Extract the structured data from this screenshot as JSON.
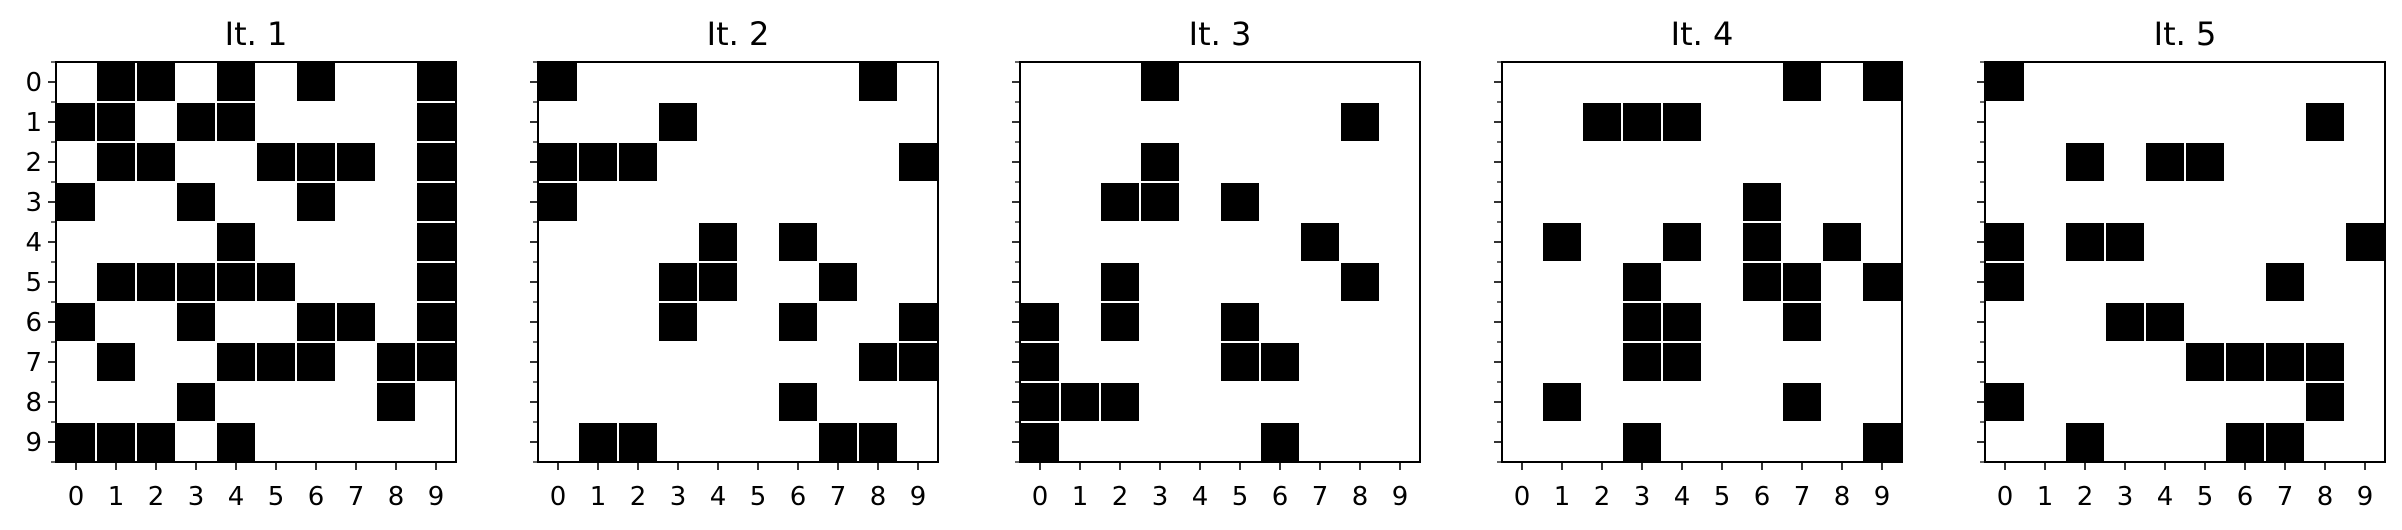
{
  "chart_data": [
    {
      "type": "heatmap",
      "title": "It. 1",
      "x_ticks": [
        "0",
        "1",
        "2",
        "3",
        "4",
        "5",
        "6",
        "7",
        "8",
        "9"
      ],
      "y_ticks": [
        "0",
        "1",
        "2",
        "3",
        "4",
        "5",
        "6",
        "7",
        "8",
        "9"
      ],
      "grid": [
        [
          0,
          1,
          1,
          0,
          1,
          0,
          1,
          0,
          0,
          1
        ],
        [
          1,
          1,
          0,
          1,
          1,
          0,
          0,
          0,
          0,
          1
        ],
        [
          0,
          1,
          1,
          0,
          0,
          1,
          1,
          1,
          0,
          1
        ],
        [
          1,
          0,
          0,
          1,
          0,
          0,
          1,
          0,
          0,
          1
        ],
        [
          0,
          0,
          0,
          0,
          1,
          0,
          0,
          0,
          0,
          1
        ],
        [
          0,
          1,
          1,
          1,
          1,
          1,
          0,
          0,
          0,
          1
        ],
        [
          1,
          0,
          0,
          1,
          0,
          0,
          1,
          1,
          0,
          1
        ],
        [
          0,
          1,
          0,
          0,
          1,
          1,
          1,
          0,
          1,
          1
        ],
        [
          0,
          0,
          0,
          1,
          0,
          0,
          0,
          0,
          1,
          0
        ],
        [
          1,
          1,
          1,
          0,
          1,
          0,
          0,
          0,
          0,
          0
        ]
      ]
    },
    {
      "type": "heatmap",
      "title": "It. 2",
      "x_ticks": [
        "0",
        "1",
        "2",
        "3",
        "4",
        "5",
        "6",
        "7",
        "8",
        "9"
      ],
      "y_ticks": [],
      "grid": [
        [
          1,
          0,
          0,
          0,
          0,
          0,
          0,
          0,
          1,
          0
        ],
        [
          0,
          0,
          0,
          1,
          0,
          0,
          0,
          0,
          0,
          0
        ],
        [
          1,
          1,
          1,
          0,
          0,
          0,
          0,
          0,
          0,
          1
        ],
        [
          1,
          0,
          0,
          0,
          0,
          0,
          0,
          0,
          0,
          0
        ],
        [
          0,
          0,
          0,
          0,
          1,
          0,
          1,
          0,
          0,
          0
        ],
        [
          0,
          0,
          0,
          1,
          1,
          0,
          0,
          1,
          0,
          0
        ],
        [
          0,
          0,
          0,
          1,
          0,
          0,
          1,
          0,
          0,
          1
        ],
        [
          0,
          0,
          0,
          0,
          0,
          0,
          0,
          0,
          1,
          1
        ],
        [
          0,
          0,
          0,
          0,
          0,
          0,
          1,
          0,
          0,
          0
        ],
        [
          0,
          1,
          1,
          0,
          0,
          0,
          0,
          1,
          1,
          0
        ]
      ]
    },
    {
      "type": "heatmap",
      "title": "It. 3",
      "x_ticks": [
        "0",
        "1",
        "2",
        "3",
        "4",
        "5",
        "6",
        "7",
        "8",
        "9"
      ],
      "y_ticks": [],
      "grid": [
        [
          0,
          0,
          0,
          1,
          0,
          0,
          0,
          0,
          0,
          0
        ],
        [
          0,
          0,
          0,
          0,
          0,
          0,
          0,
          0,
          1,
          0
        ],
        [
          0,
          0,
          0,
          1,
          0,
          0,
          0,
          0,
          0,
          0
        ],
        [
          0,
          0,
          1,
          1,
          0,
          1,
          0,
          0,
          0,
          0
        ],
        [
          0,
          0,
          0,
          0,
          0,
          0,
          0,
          1,
          0,
          0
        ],
        [
          0,
          0,
          1,
          0,
          0,
          0,
          0,
          0,
          1,
          0
        ],
        [
          1,
          0,
          1,
          0,
          0,
          1,
          0,
          0,
          0,
          0
        ],
        [
          1,
          0,
          0,
          0,
          0,
          1,
          1,
          0,
          0,
          0
        ],
        [
          1,
          1,
          1,
          0,
          0,
          0,
          0,
          0,
          0,
          0
        ],
        [
          1,
          0,
          0,
          0,
          0,
          0,
          1,
          0,
          0,
          0
        ]
      ]
    },
    {
      "type": "heatmap",
      "title": "It. 4",
      "x_ticks": [
        "0",
        "1",
        "2",
        "3",
        "4",
        "5",
        "6",
        "7",
        "8",
        "9"
      ],
      "y_ticks": [],
      "grid": [
        [
          0,
          0,
          0,
          0,
          0,
          0,
          0,
          1,
          0,
          1
        ],
        [
          0,
          0,
          1,
          1,
          1,
          0,
          0,
          0,
          0,
          0
        ],
        [
          0,
          0,
          0,
          0,
          0,
          0,
          0,
          0,
          0,
          0
        ],
        [
          0,
          0,
          0,
          0,
          0,
          0,
          1,
          0,
          0,
          0
        ],
        [
          0,
          1,
          0,
          0,
          1,
          0,
          1,
          0,
          1,
          0
        ],
        [
          0,
          0,
          0,
          1,
          0,
          0,
          1,
          1,
          0,
          1
        ],
        [
          0,
          0,
          0,
          1,
          1,
          0,
          0,
          1,
          0,
          0
        ],
        [
          0,
          0,
          0,
          1,
          1,
          0,
          0,
          0,
          0,
          0
        ],
        [
          0,
          1,
          0,
          0,
          0,
          0,
          0,
          1,
          0,
          0
        ],
        [
          0,
          0,
          0,
          1,
          0,
          0,
          0,
          0,
          0,
          1
        ]
      ]
    },
    {
      "type": "heatmap",
      "title": "It. 5",
      "x_ticks": [
        "0",
        "1",
        "2",
        "3",
        "4",
        "5",
        "6",
        "7",
        "8",
        "9"
      ],
      "y_ticks": [],
      "grid": [
        [
          1,
          0,
          0,
          0,
          0,
          0,
          0,
          0,
          0,
          0
        ],
        [
          0,
          0,
          0,
          0,
          0,
          0,
          0,
          0,
          1,
          0
        ],
        [
          0,
          0,
          1,
          0,
          1,
          1,
          0,
          0,
          0,
          0
        ],
        [
          0,
          0,
          0,
          0,
          0,
          0,
          0,
          0,
          0,
          0
        ],
        [
          1,
          0,
          1,
          1,
          0,
          0,
          0,
          0,
          0,
          1
        ],
        [
          1,
          0,
          0,
          0,
          0,
          0,
          0,
          1,
          0,
          0
        ],
        [
          0,
          0,
          0,
          1,
          1,
          0,
          0,
          0,
          0,
          0
        ],
        [
          0,
          0,
          0,
          0,
          0,
          1,
          1,
          1,
          1,
          0
        ],
        [
          1,
          0,
          0,
          0,
          0,
          0,
          0,
          0,
          1,
          0
        ],
        [
          0,
          0,
          1,
          0,
          0,
          0,
          1,
          1,
          0,
          0
        ]
      ]
    }
  ],
  "colors": {
    "on": "#000000",
    "off": "#ffffff",
    "cell_border": "#ffffff",
    "axes": "#000000"
  }
}
